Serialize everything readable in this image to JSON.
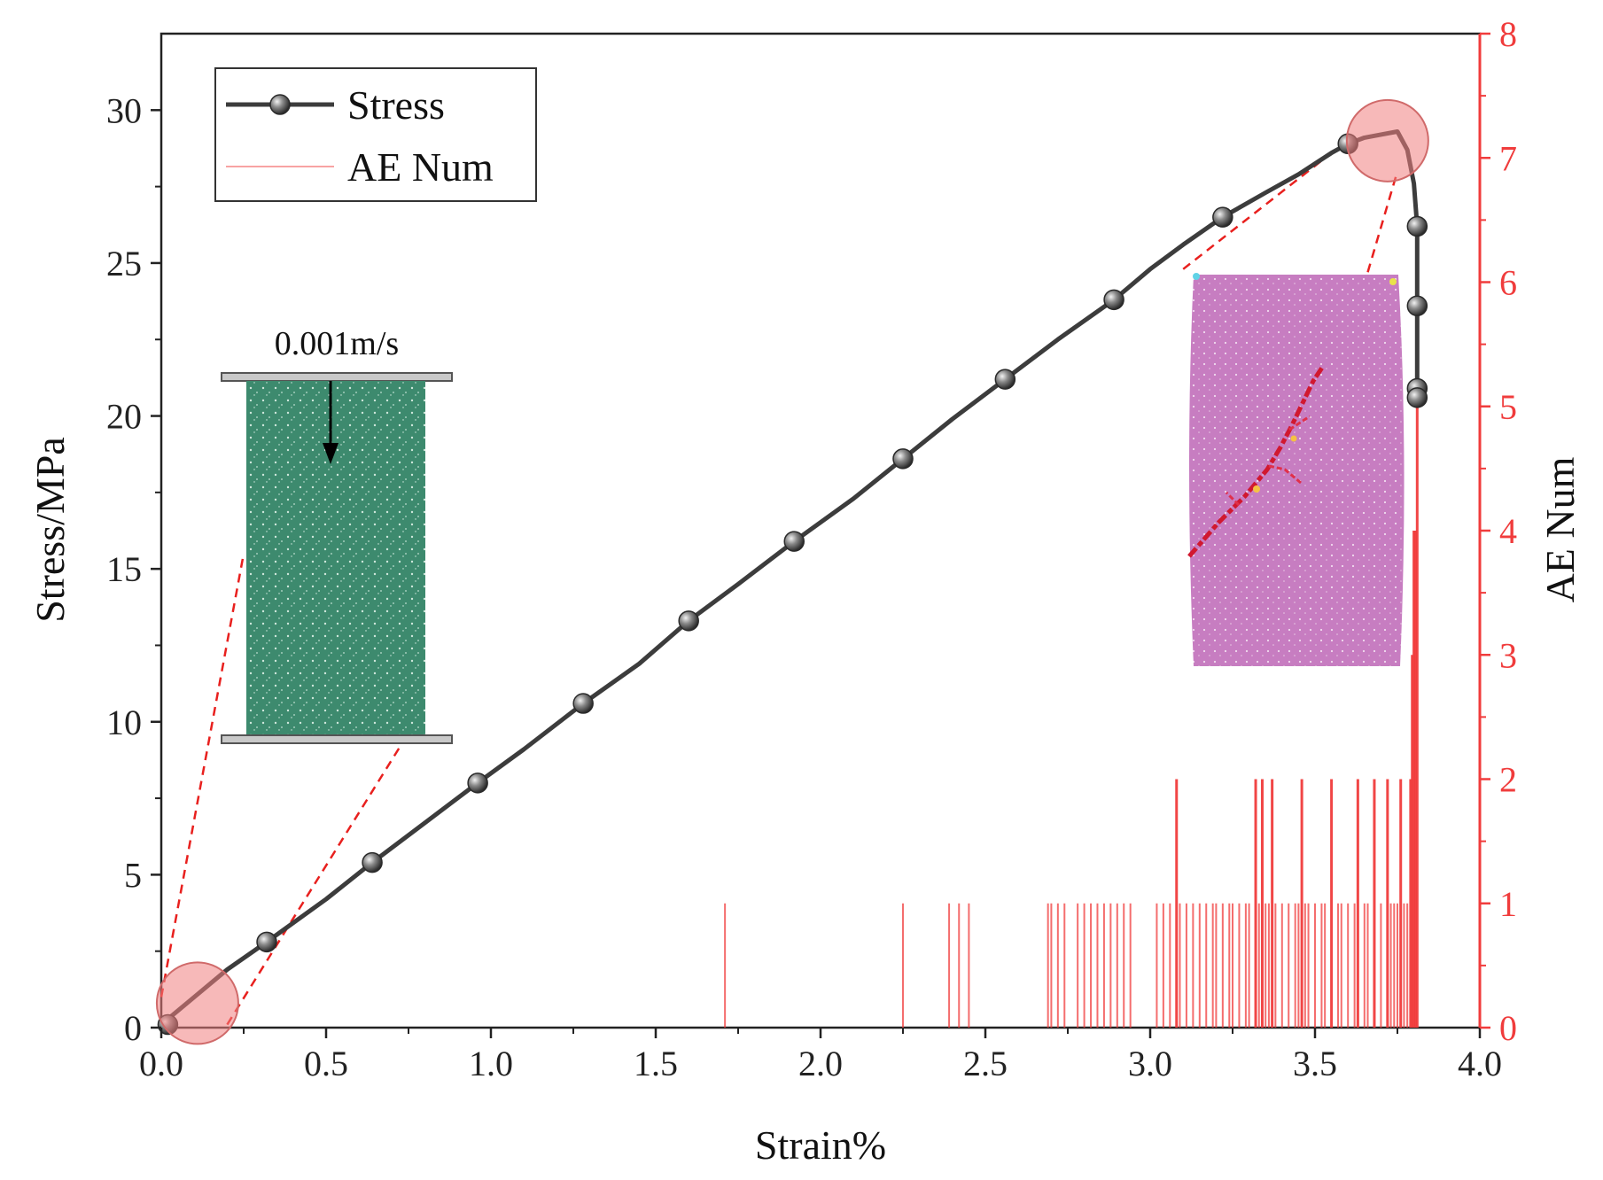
{
  "chart_data": {
    "type": "line",
    "xlabel": "Strain%",
    "ylabel": "Stress/MPa",
    "y2label": "AE Num",
    "xlim": [
      0.0,
      4.0
    ],
    "ylim": [
      0,
      32.5
    ],
    "y2lim": [
      0,
      8
    ],
    "xticks": [
      "0.0",
      "0.5",
      "1.0",
      "1.5",
      "2.0",
      "2.5",
      "3.0",
      "3.5",
      "4.0"
    ],
    "yticks": [
      "0",
      "5",
      "10",
      "15",
      "20",
      "25",
      "30"
    ],
    "y2ticks": [
      "0",
      "1",
      "2",
      "3",
      "4",
      "5",
      "6",
      "7",
      "8"
    ],
    "colors": {
      "stress": "#3c3c3c",
      "ae": "#f03c3c",
      "guide": "#e8201e",
      "specimen_before": "#3d8a6e",
      "specimen_after": "#c77dc1"
    },
    "legend": {
      "position": "top-left",
      "entries": [
        "Stress",
        "AE Num"
      ]
    },
    "series": [
      {
        "name": "Stress",
        "axis": "left",
        "x": [
          0.0,
          0.1,
          0.2,
          0.32,
          0.5,
          0.64,
          0.8,
          0.96,
          1.1,
          1.28,
          1.45,
          1.6,
          1.75,
          1.92,
          2.1,
          2.25,
          2.4,
          2.56,
          2.72,
          2.89,
          3.0,
          3.1,
          3.22,
          3.35,
          3.45,
          3.55,
          3.6,
          3.65,
          3.7,
          3.75,
          3.78,
          3.8,
          3.81,
          3.81,
          3.81,
          3.81,
          3.81
        ],
        "y": [
          0.1,
          1.0,
          1.9,
          2.8,
          4.2,
          5.4,
          6.7,
          8.0,
          9.1,
          10.6,
          11.9,
          13.3,
          14.5,
          15.9,
          17.3,
          18.6,
          19.9,
          21.2,
          22.5,
          23.8,
          24.8,
          25.6,
          26.5,
          27.3,
          27.9,
          28.6,
          28.9,
          29.1,
          29.2,
          29.3,
          28.7,
          27.6,
          26.2,
          23.6,
          20.9,
          20.6,
          20.5
        ]
      },
      {
        "name": "Stress markers",
        "axis": "left",
        "x": [
          0.02,
          0.32,
          0.64,
          0.96,
          1.28,
          1.6,
          1.92,
          2.25,
          2.56,
          2.89,
          3.22,
          3.6,
          3.81,
          3.81,
          3.81,
          3.81
        ],
        "y": [
          0.1,
          2.8,
          5.4,
          8.0,
          10.6,
          13.3,
          15.9,
          18.6,
          21.2,
          23.8,
          26.5,
          28.9,
          26.2,
          23.6,
          20.9,
          20.6
        ]
      },
      {
        "name": "AE Num",
        "axis": "right",
        "x": [
          1.71,
          2.25,
          2.39,
          2.42,
          2.45,
          2.69,
          2.7,
          2.72,
          2.74,
          2.78,
          2.8,
          2.82,
          2.84,
          2.86,
          2.88,
          2.9,
          2.92,
          2.94,
          3.02,
          3.04,
          3.06,
          3.08,
          3.09,
          3.11,
          3.13,
          3.15,
          3.17,
          3.19,
          3.2,
          3.22,
          3.24,
          3.25,
          3.27,
          3.29,
          3.3,
          3.32,
          3.33,
          3.34,
          3.35,
          3.36,
          3.37,
          3.38,
          3.4,
          3.42,
          3.44,
          3.45,
          3.46,
          3.47,
          3.48,
          3.5,
          3.52,
          3.53,
          3.55,
          3.57,
          3.58,
          3.6,
          3.62,
          3.63,
          3.65,
          3.66,
          3.68,
          3.7,
          3.72,
          3.73,
          3.74,
          3.75,
          3.76,
          3.77,
          3.78,
          3.79,
          3.795,
          3.8,
          3.805,
          3.81
        ],
        "y": [
          1,
          1,
          1,
          1,
          1,
          1,
          1,
          1,
          1,
          1,
          1,
          1,
          1,
          1,
          1,
          1,
          1,
          1,
          1,
          1,
          1,
          2,
          1,
          1,
          1,
          1,
          1,
          1,
          1,
          1,
          1,
          1,
          1,
          1,
          1,
          2,
          1,
          2,
          1,
          1,
          2,
          1,
          1,
          1,
          1,
          1,
          2,
          1,
          1,
          1,
          1,
          1,
          2,
          1,
          1,
          1,
          1,
          2,
          1,
          1,
          2,
          1,
          2,
          1,
          1,
          1,
          2,
          1,
          1,
          2,
          3,
          4,
          4,
          5
        ]
      }
    ],
    "annotations": [
      {
        "type": "circle",
        "x": 0.11,
        "y": 0.8,
        "label": ""
      },
      {
        "type": "circle",
        "x": 3.72,
        "y": 29.0,
        "label": ""
      },
      {
        "type": "inset",
        "name": "specimen-before",
        "label": "0.001m/s"
      },
      {
        "type": "inset",
        "name": "specimen-after",
        "label": ""
      }
    ]
  }
}
